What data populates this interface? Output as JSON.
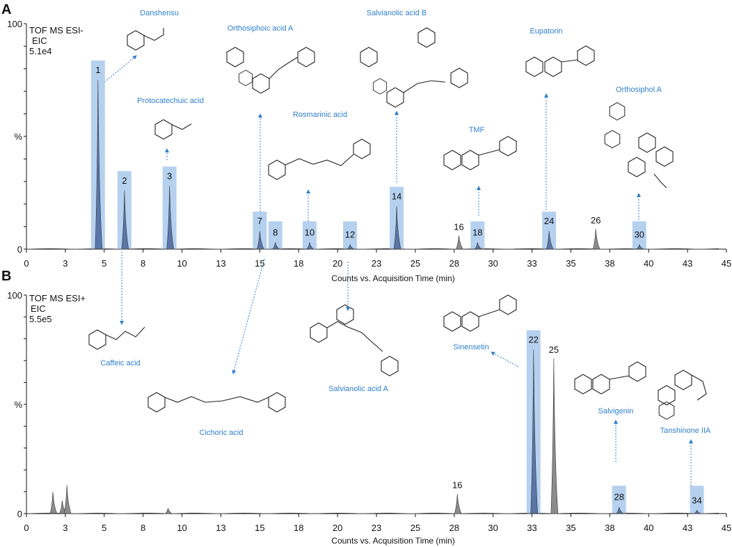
{
  "chart_data": [
    {
      "panel": "A",
      "type": "line",
      "info_lines": [
        "TOF MS ESI-",
        "EIC",
        "5.1e4"
      ],
      "xlabel": "Counts vs. Acquisition Time (min)",
      "ylabel": "%",
      "xlim": [
        0,
        45
      ],
      "ylim": [
        0,
        100
      ],
      "x_tick_labels": [
        "0",
        "3",
        "5",
        "8",
        "10",
        "13",
        "15",
        "18",
        "20",
        "23",
        "25",
        "28",
        "30",
        "33",
        "35",
        "38",
        "40",
        "43",
        "45"
      ],
      "y_tick_labels": [
        "100",
        "%",
        "0"
      ],
      "series": [
        {
          "values": [
            {
              "peak": "1",
              "x": 4.6,
              "y": 75,
              "highlight": true,
              "compound": "Danshensu"
            },
            {
              "peak": "2",
              "x": 6.3,
              "y": 26,
              "highlight": true,
              "compound": "Caffeic acid"
            },
            {
              "peak": "3",
              "x": 9.2,
              "y": 28,
              "highlight": true,
              "compound": "Protocatechuic acid"
            },
            {
              "peak": "7",
              "x": 15.0,
              "y": 8,
              "highlight": true,
              "compound": "Orthosiphoic acid A"
            },
            {
              "peak": "8",
              "x": 16.0,
              "y": 3,
              "highlight": true,
              "compound": "Cichoric acid"
            },
            {
              "peak": "10",
              "x": 18.2,
              "y": 3,
              "highlight": true,
              "compound": "Rosmarinic acid"
            },
            {
              "peak": "12",
              "x": 20.8,
              "y": 2,
              "highlight": true,
              "compound": "Salvianolic acid A"
            },
            {
              "peak": "14",
              "x": 23.8,
              "y": 19,
              "highlight": true,
              "compound": "Salvianolic acid B"
            },
            {
              "peak": "16",
              "x": 27.8,
              "y": 6,
              "highlight": false,
              "compound": ""
            },
            {
              "peak": "18",
              "x": 29.0,
              "y": 3,
              "highlight": true,
              "compound": "TMF"
            },
            {
              "peak": "24",
              "x": 33.6,
              "y": 8,
              "highlight": true,
              "compound": "Eupatorin"
            },
            {
              "peak": "26",
              "x": 36.6,
              "y": 9,
              "highlight": false,
              "compound": ""
            },
            {
              "peak": "30",
              "x": 39.4,
              "y": 2,
              "highlight": true,
              "compound": "Orthosiphol A"
            }
          ]
        }
      ],
      "compound_labels": [
        "Danshensu",
        "Protocatechuic acid",
        "Orthosiphoic acid A",
        "Salvianolic acid B",
        "Rosmarinic acid",
        "TMF",
        "Eupatorin",
        "Orthosiphol A"
      ]
    },
    {
      "panel": "B",
      "type": "line",
      "info_lines": [
        "TOF MS ESI+",
        "EIC",
        "5.5e5"
      ],
      "xlabel": "Counts vs. Acquisition Time (min)",
      "ylabel": "%",
      "xlim": [
        0,
        45
      ],
      "ylim": [
        0,
        100
      ],
      "x_tick_labels": [
        "0",
        "3",
        "5",
        "8",
        "10",
        "13",
        "15",
        "18",
        "20",
        "23",
        "25",
        "28",
        "30",
        "33",
        "35",
        "38",
        "40",
        "43",
        "45"
      ],
      "y_tick_labels": [
        "100",
        "%",
        "0"
      ],
      "series": [
        {
          "values": [
            {
              "peak": "",
              "x": 1.7,
              "y": 10,
              "highlight": false,
              "compound": ""
            },
            {
              "peak": "",
              "x": 2.3,
              "y": 6,
              "highlight": false,
              "compound": ""
            },
            {
              "peak": "",
              "x": 2.6,
              "y": 13,
              "highlight": false,
              "compound": ""
            },
            {
              "peak": "",
              "x": 9.1,
              "y": 2.5,
              "highlight": false,
              "compound": ""
            },
            {
              "peak": "16",
              "x": 27.7,
              "y": 9,
              "highlight": false,
              "compound": ""
            },
            {
              "peak": "22",
              "x": 32.6,
              "y": 75,
              "highlight": true,
              "compound": "Sinensetin"
            },
            {
              "peak": "25",
              "x": 33.9,
              "y": 71,
              "highlight": false,
              "compound": ""
            },
            {
              "peak": "28",
              "x": 38.1,
              "y": 3,
              "highlight": true,
              "compound": "Salvigenin"
            },
            {
              "peak": "34",
              "x": 43.1,
              "y": 1.5,
              "highlight": true,
              "compound": "Tanshinone IIA"
            }
          ]
        }
      ],
      "compound_labels": [
        "Caffeic acid",
        "Cichoric acid",
        "Salvianolic acid A",
        "Sinensetin",
        "Salvigenin",
        "Tanshinone  IIA"
      ]
    }
  ]
}
